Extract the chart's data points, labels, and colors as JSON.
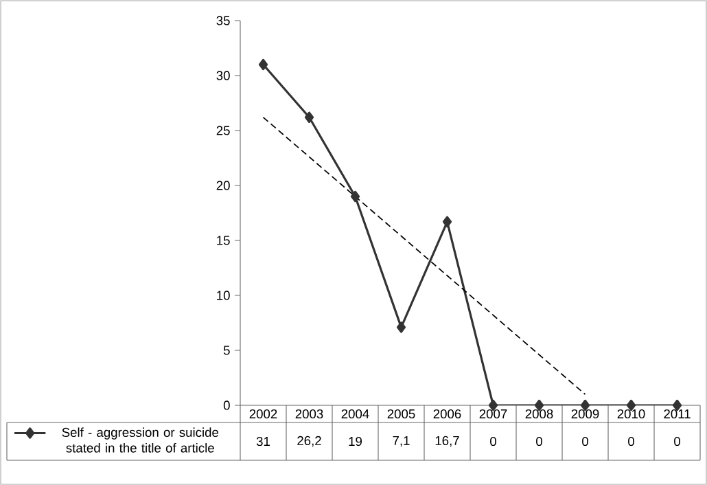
{
  "chart_data": {
    "type": "line",
    "categories": [
      "2002",
      "2003",
      "2004",
      "2005",
      "2006",
      "2007",
      "2008",
      "2009",
      "2010",
      "2011"
    ],
    "series": [
      {
        "name": "Self - aggression or suicide stated in the title of article",
        "color": "#333333",
        "values": [
          31,
          26.2,
          19,
          7.1,
          16.7,
          0,
          0,
          0,
          0,
          0
        ],
        "value_labels": [
          "31",
          "26,2",
          "19",
          "7,1",
          "16,7",
          "0",
          "0",
          "0",
          "0",
          "0"
        ],
        "marker": "diamond",
        "line_style": "solid"
      },
      {
        "type": "line",
        "color": "#000000",
        "values": [
          26.2,
          22.6,
          19.0,
          15.4,
          11.8,
          8.2,
          4.6,
          1.0,
          null,
          null
        ],
        "marker": "none",
        "line_style": "dashed"
      }
    ],
    "ylim": [
      0,
      35
    ],
    "yticks": [
      0,
      5,
      10,
      15,
      20,
      25,
      30,
      35
    ],
    "legend": "bottom left"
  }
}
